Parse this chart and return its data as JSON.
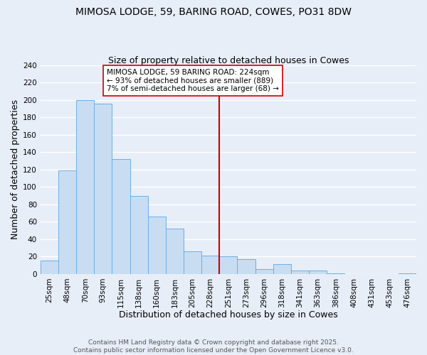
{
  "title": "MIMOSA LODGE, 59, BARING ROAD, COWES, PO31 8DW",
  "subtitle": "Size of property relative to detached houses in Cowes",
  "xlabel": "Distribution of detached houses by size in Cowes",
  "ylabel": "Number of detached properties",
  "bar_labels": [
    "25sqm",
    "48sqm",
    "70sqm",
    "93sqm",
    "115sqm",
    "138sqm",
    "160sqm",
    "183sqm",
    "205sqm",
    "228sqm",
    "251sqm",
    "273sqm",
    "296sqm",
    "318sqm",
    "341sqm",
    "363sqm",
    "386sqm",
    "408sqm",
    "431sqm",
    "453sqm",
    "476sqm"
  ],
  "bar_values": [
    15,
    119,
    200,
    196,
    132,
    90,
    66,
    52,
    26,
    21,
    20,
    17,
    6,
    11,
    4,
    4,
    1,
    0,
    0,
    0,
    1
  ],
  "bar_color": "#c9ddf2",
  "bar_edge_color": "#6aaee8",
  "vline_x_index": 9,
  "vline_color": "#cc0000",
  "annotation_text": "MIMOSA LODGE, 59 BARING ROAD: 224sqm\n← 93% of detached houses are smaller (889)\n7% of semi-detached houses are larger (68) →",
  "annotation_box_facecolor": "#ffffff",
  "annotation_box_edgecolor": "#cc0000",
  "ylim": [
    0,
    240
  ],
  "yticks": [
    0,
    20,
    40,
    60,
    80,
    100,
    120,
    140,
    160,
    180,
    200,
    220,
    240
  ],
  "footnote": "Contains HM Land Registry data © Crown copyright and database right 2025.\nContains public sector information licensed under the Open Government Licence v3.0.",
  "background_color": "#e8eef8",
  "grid_color": "#ffffff",
  "title_fontsize": 10,
  "subtitle_fontsize": 9,
  "axis_label_fontsize": 9,
  "tick_fontsize": 7.5,
  "annotation_fontsize": 7.5,
  "footnote_fontsize": 6.5
}
